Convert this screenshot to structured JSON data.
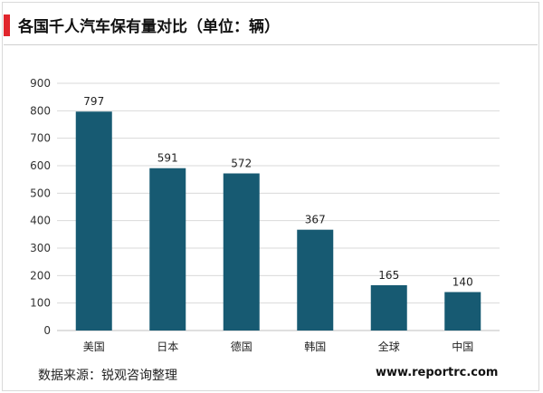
{
  "title": "各国千人汽车保有量对比（单位：辆）",
  "footer": {
    "source": "数据来源：锐观咨询整理",
    "website": "www.reportrc.com"
  },
  "colors": {
    "bar": "#175a72",
    "accent": "#e1262d",
    "grid": "#d9d9d9"
  },
  "chart_data": {
    "type": "bar",
    "categories": [
      "美国",
      "日本",
      "德国",
      "韩国",
      "全球",
      "中国"
    ],
    "values": [
      797,
      591,
      572,
      367,
      165,
      140
    ],
    "ylim": [
      0,
      900
    ],
    "yticks": [
      0,
      100,
      200,
      300,
      400,
      500,
      600,
      700,
      800,
      900
    ],
    "grid": true,
    "data_labels": true
  }
}
